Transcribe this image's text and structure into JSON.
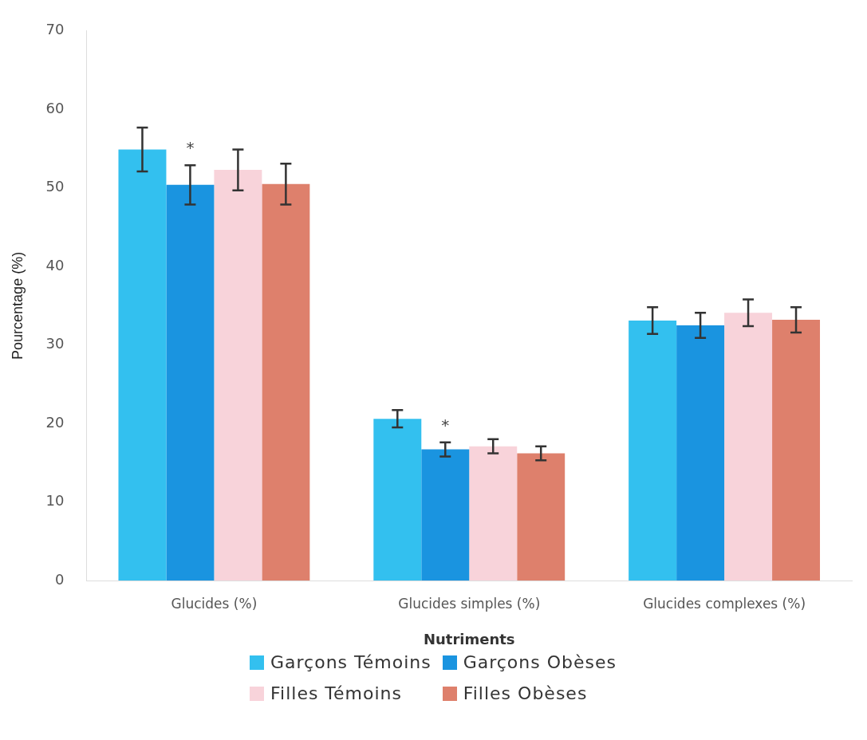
{
  "chart_data": {
    "type": "bar",
    "xlabel": "Nutriments",
    "ylabel": "Pourcentage (%)",
    "categories": [
      "Glucides (%)",
      "Glucides simples (%)",
      "Glucides complexes (%)"
    ],
    "series": [
      {
        "name": "Garçons Témoins",
        "color": "#33c0ef",
        "values": [
          54.9,
          20.6,
          33.1
        ],
        "errors": [
          2.8,
          1.1,
          1.7
        ]
      },
      {
        "name": "Garçons Obèses",
        "color": "#1a94e0",
        "values": [
          50.4,
          16.7,
          32.5
        ],
        "errors": [
          2.5,
          0.9,
          1.6
        ]
      },
      {
        "name": "Filles Témoins",
        "color": "#f8d3da",
        "values": [
          52.3,
          17.1,
          34.1
        ],
        "errors": [
          2.6,
          0.9,
          1.7
        ]
      },
      {
        "name": "Filles Obèses",
        "color": "#de806c",
        "values": [
          50.5,
          16.2,
          33.2
        ],
        "errors": [
          2.6,
          0.9,
          1.6
        ]
      }
    ],
    "ylim": [
      0,
      70
    ],
    "yticks": [
      0,
      10,
      20,
      30,
      40,
      50,
      60,
      70
    ],
    "grid": false,
    "legend": "bottom",
    "annotations": [
      "*",
      "*"
    ]
  }
}
